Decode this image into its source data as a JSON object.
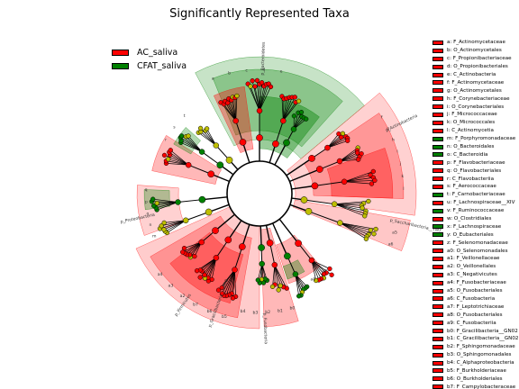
{
  "title": "Significantly Represented Taxa",
  "colors": {
    "AC_saliva": "#ff0000",
    "CFAT_saliva": "#008000",
    "nonsig": "#bfbf00"
  },
  "groups": [
    {
      "name": "AC_saliva",
      "color": "#ff0000"
    },
    {
      "name": "CFAT_saliva",
      "color": "#008000"
    }
  ],
  "taxa_legend": [
    {
      "label": "a: F_Actinomycetaceae",
      "group": "AC_saliva"
    },
    {
      "label": "b: O_Actinomycetales",
      "group": "AC_saliva"
    },
    {
      "label": "c: F_Propionibacteriaceae",
      "group": "AC_saliva"
    },
    {
      "label": "d: O_Propionibacteriales",
      "group": "AC_saliva"
    },
    {
      "label": "e: C_Actinobacteria",
      "group": "AC_saliva"
    },
    {
      "label": "f: F_Actinomycetaceae",
      "group": "AC_saliva"
    },
    {
      "label": "g: O_Actinomycetales",
      "group": "AC_saliva"
    },
    {
      "label": "h: F_Corynebacteriaceae",
      "group": "AC_saliva"
    },
    {
      "label": "i: O_Corynebacteriales",
      "group": "AC_saliva"
    },
    {
      "label": "j: F_Micrococcaceae",
      "group": "AC_saliva"
    },
    {
      "label": "k: O_Micrococcales",
      "group": "AC_saliva"
    },
    {
      "label": "l: C_Actinomycetia",
      "group": "AC_saliva"
    },
    {
      "label": "m: F_Porphyromonadaceae",
      "group": "CFAT_saliva"
    },
    {
      "label": "n: O_Bacteroidales",
      "group": "CFAT_saliva"
    },
    {
      "label": "o: C_Bacteroidia",
      "group": "CFAT_saliva"
    },
    {
      "label": "p: F_Flavobacteriaceae",
      "group": "AC_saliva"
    },
    {
      "label": "q: O_Flavobacteriales",
      "group": "AC_saliva"
    },
    {
      "label": "r: C_Flavobacteriia",
      "group": "AC_saliva"
    },
    {
      "label": "s: F_Aerococcaceae",
      "group": "AC_saliva"
    },
    {
      "label": "t: F_Carnobacteriaceae",
      "group": "CFAT_saliva"
    },
    {
      "label": "u: F_Lachnospiraceae__XIV",
      "group": "AC_saliva"
    },
    {
      "label": "v: F_Ruminococcaceae",
      "group": "CFAT_saliva"
    },
    {
      "label": "w: O_Clostridiales",
      "group": "AC_saliva"
    },
    {
      "label": "x: F_Lachnospiraceae",
      "group": "CFAT_saliva"
    },
    {
      "label": "y: O_Eubacteriales",
      "group": "CFAT_saliva"
    },
    {
      "label": "z: F_Selenomonadaceae",
      "group": "AC_saliva"
    },
    {
      "label": "a0: O_Selenomonadales",
      "group": "AC_saliva"
    },
    {
      "label": "a1: F_Veillonellaceae",
      "group": "AC_saliva"
    },
    {
      "label": "a2: O_Veillonellales",
      "group": "AC_saliva"
    },
    {
      "label": "a3: C_Negativicutes",
      "group": "AC_saliva"
    },
    {
      "label": "a4: F_Fusobacteriaceae",
      "group": "AC_saliva"
    },
    {
      "label": "a5: O_Fusobacteriales",
      "group": "AC_saliva"
    },
    {
      "label": "a6: C_Fusobacteria",
      "group": "AC_saliva"
    },
    {
      "label": "a7: F_Leptotrichiaceae",
      "group": "AC_saliva"
    },
    {
      "label": "a8: O_Fusobacteriales",
      "group": "AC_saliva"
    },
    {
      "label": "a9: C_Fusobacteriia",
      "group": "AC_saliva"
    },
    {
      "label": "b0: F_Gracilibacteria__GN02",
      "group": "AC_saliva"
    },
    {
      "label": "b1: C_Gracilibacteria__GN02",
      "group": "AC_saliva"
    },
    {
      "label": "b2: F_Sphingomonadaceae",
      "group": "AC_saliva"
    },
    {
      "label": "b3: O_Sphingomonadales",
      "group": "AC_saliva"
    },
    {
      "label": "b4: C_Alphaproteobacteria",
      "group": "AC_saliva"
    },
    {
      "label": "b5: F_Burkholderiaceae",
      "group": "AC_saliva"
    },
    {
      "label": "b6: O_Burkholderiales",
      "group": "AC_saliva"
    },
    {
      "label": "b7: F_Campylobacteraceae",
      "group": "AC_saliva"
    }
  ],
  "clade_sectors": [
    {
      "label": "p_Bacteroidetes",
      "group": "CFAT_saliva"
    },
    {
      "label": "p_Actinobacteria",
      "group": "AC_saliva"
    },
    {
      "label": "p_Saccharibacteria__TM7_",
      "group": "AC_saliva"
    },
    {
      "label": "p_Fusobacteria",
      "group": "AC_saliva"
    },
    {
      "label": "p_Gracilibacteria__GN02",
      "group": "AC_saliva"
    },
    {
      "label": "p_Firmicutes",
      "group": "AC_saliva"
    },
    {
      "label": "p_Proteobacteria",
      "group": "AC_saliva"
    }
  ],
  "marker_labels": {
    "top": [
      "a",
      "b",
      "c",
      "d",
      "e"
    ],
    "actino": [
      "f",
      "g",
      "h",
      "i",
      "j",
      "k",
      "l"
    ],
    "tm7": [
      "a5",
      "a6"
    ],
    "bottom_right": [
      "a7",
      "a8",
      "a9"
    ],
    "bottom": [
      "b0",
      "b1",
      "b2",
      "b3",
      "b4"
    ],
    "bottom_left": [
      "b5",
      "b6",
      "b7",
      "a2",
      "a3",
      "a4"
    ],
    "left": [
      "m",
      "n",
      "o",
      "p",
      "q"
    ],
    "upper_left": [
      "r",
      "s",
      "t"
    ]
  }
}
